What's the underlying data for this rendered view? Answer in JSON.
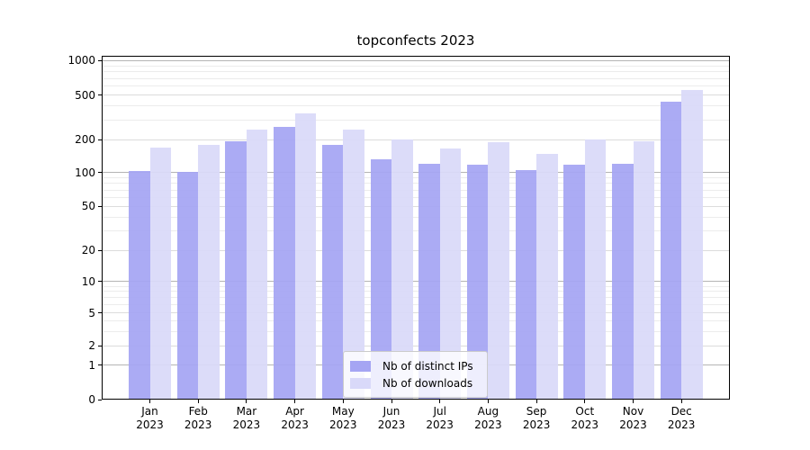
{
  "title": "topconfects 2023",
  "legend": {
    "items": [
      {
        "label": "Nb of distinct IPs",
        "color": "#a5a5f3"
      },
      {
        "label": "Nb of downloads",
        "color": "#d9d9f9"
      }
    ]
  },
  "chart_data": {
    "type": "bar",
    "title": "topconfects 2023",
    "categories": [
      "Jan",
      "Feb",
      "Mar",
      "Apr",
      "May",
      "Jun",
      "Jul",
      "Aug",
      "Sep",
      "Oct",
      "Nov",
      "Dec"
    ],
    "year_label": "2023",
    "series": [
      {
        "name": "Nb of distinct IPs",
        "color": "#a5a5f3",
        "values": [
          103,
          102,
          192,
          260,
          180,
          131,
          121,
          118,
          105,
          118,
          120,
          440
        ]
      },
      {
        "name": "Nb of downloads",
        "color": "#d9d9f9",
        "values": [
          170,
          178,
          245,
          345,
          245,
          200,
          167,
          188,
          149,
          200,
          193,
          555
        ]
      }
    ],
    "xlabel": "",
    "ylabel": "",
    "y_scale": "symlog",
    "y_ticks": [
      0,
      1,
      2,
      5,
      10,
      20,
      50,
      100,
      200,
      500,
      1000
    ],
    "ylim": [
      0,
      1100
    ],
    "grid": true,
    "legend_position": "lower center"
  },
  "colors": {
    "major_grid": "#b4b4b4",
    "labeled_minor_grid": "#dcdcdc",
    "minor_grid": "#ececec",
    "axis": "#000000"
  }
}
